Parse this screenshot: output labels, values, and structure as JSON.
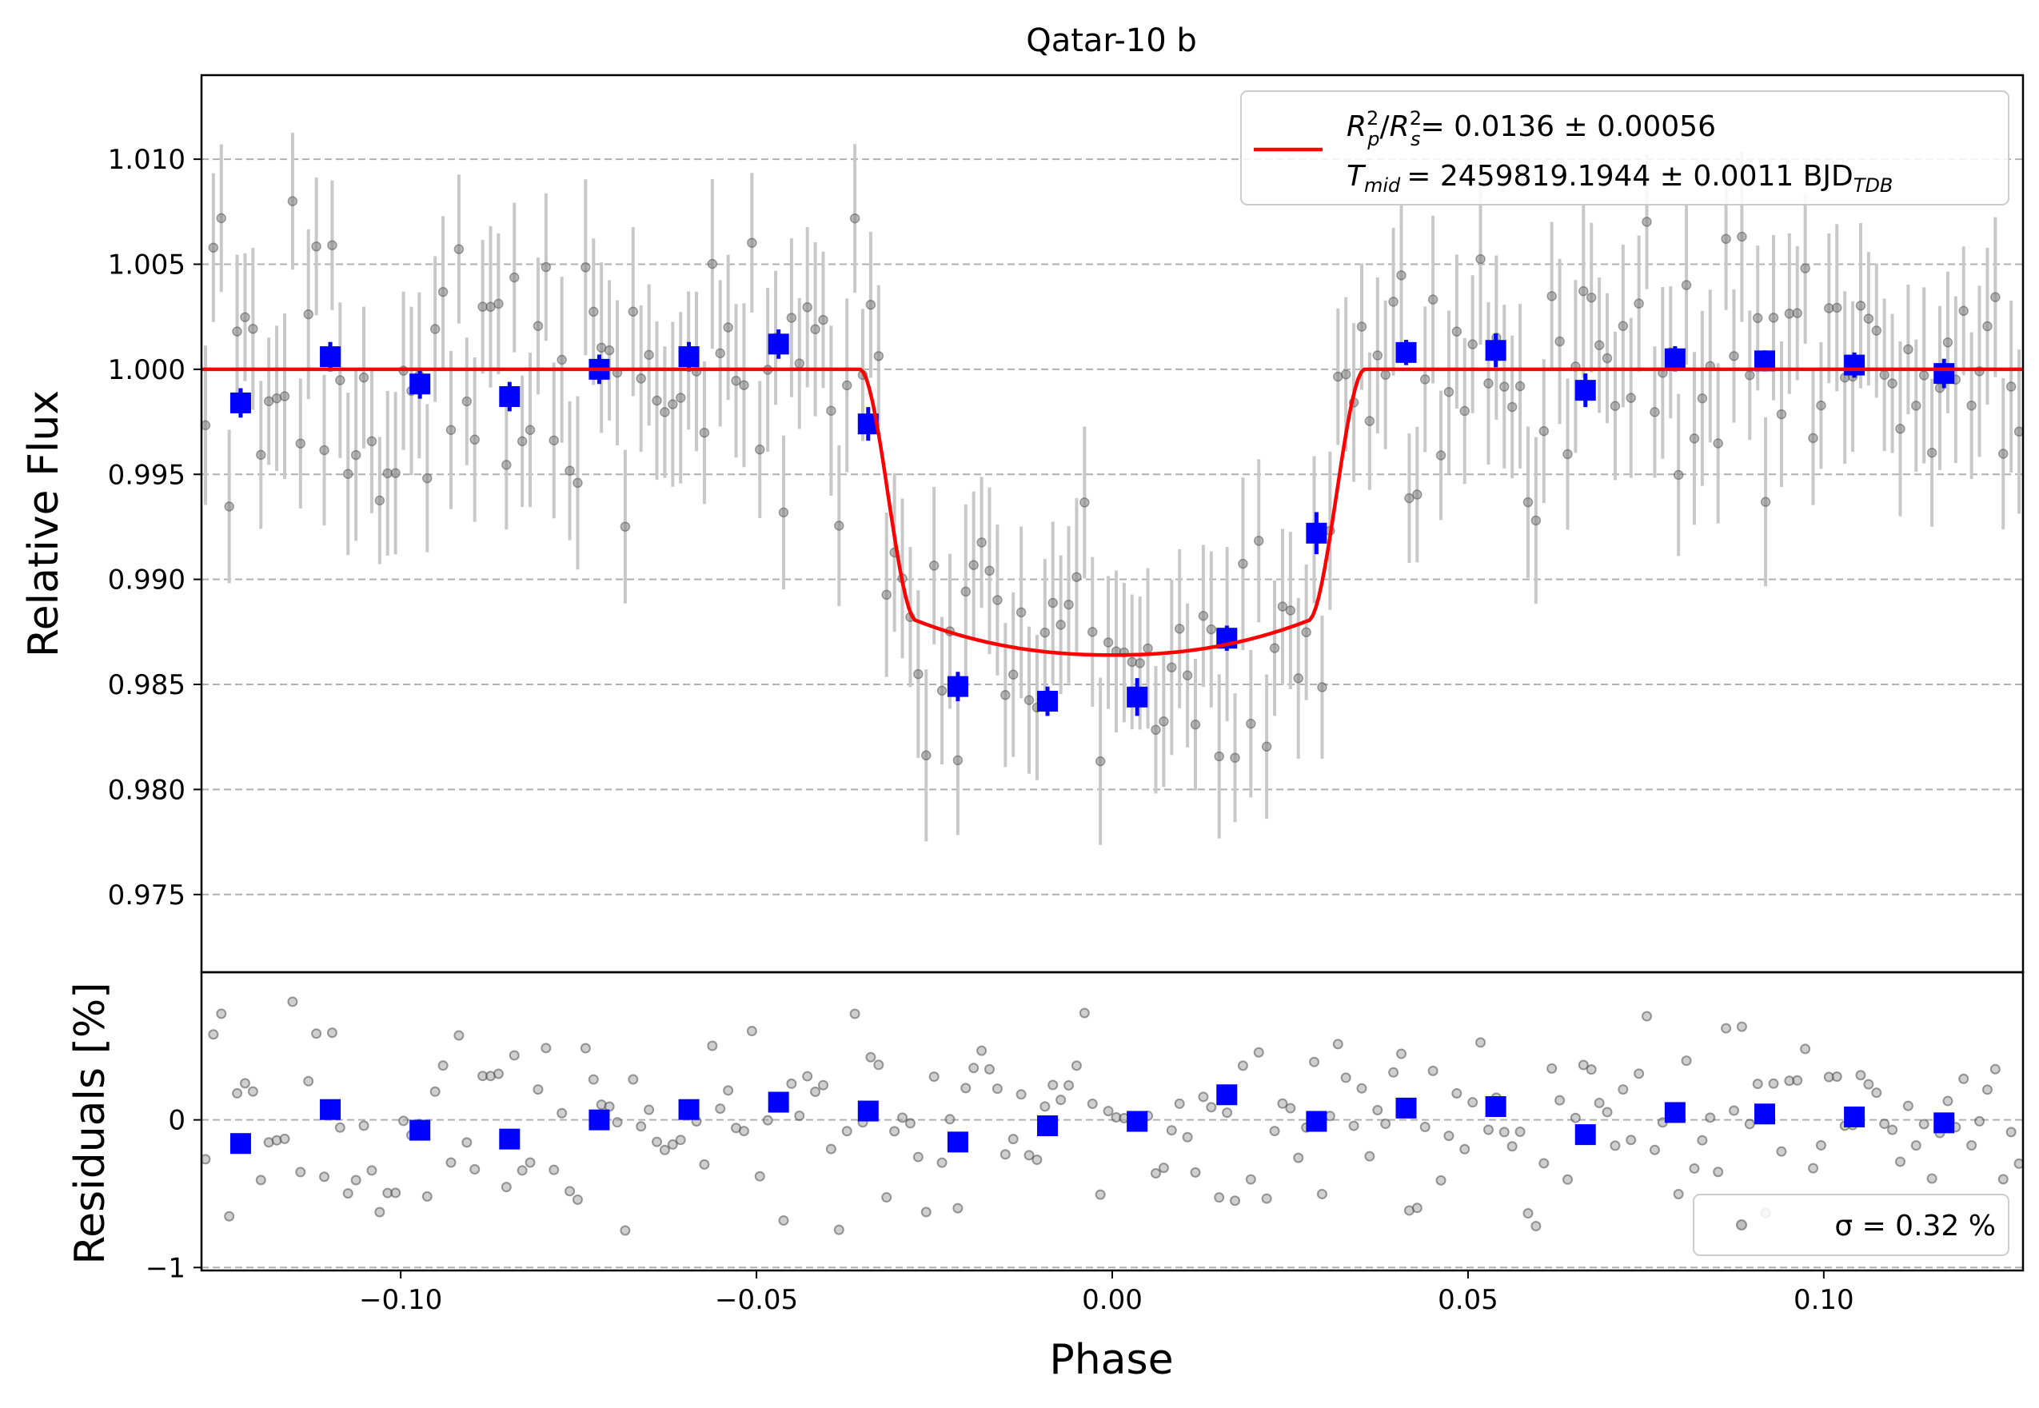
{
  "chart_data": [
    {
      "type": "scatter",
      "panel": "top",
      "title": "Qatar-10 b",
      "xlabel": "",
      "ylabel": "Relative Flux",
      "xlim": [
        -0.128,
        0.128
      ],
      "ylim": [
        0.9713,
        1.014
      ],
      "yticks": [
        0.975,
        0.98,
        0.985,
        0.99,
        0.995,
        1.0,
        1.005,
        1.01
      ],
      "ytick_labels": [
        "0.975",
        "0.980",
        "0.985",
        "0.990",
        "0.995",
        "1.000",
        "1.005",
        "1.010"
      ],
      "grid": "horizontal dashed",
      "legend": {
        "placement": "top-right",
        "line1": {
          "math": "R_p^2/R_s^2",
          "value": "= 0.0136 ± 0.00056"
        },
        "line2": {
          "math": "T_mid",
          "value": "= 2459819.1944 ± 0.0011 BJD",
          "sub": "TDB"
        }
      },
      "model": {
        "color": "#ff0000",
        "depth": 0.0136,
        "t14_half": 0.0355,
        "t23_half": 0.0275,
        "baseline": 1.0
      },
      "binned": {
        "color": "#0000ff",
        "x": [
          -0.1225,
          -0.1099,
          -0.0973,
          -0.0847,
          -0.0721,
          -0.0595,
          -0.0469,
          -0.0343,
          -0.0217,
          -0.0091,
          0.0035,
          0.0161,
          0.0287,
          0.0413,
          0.0539,
          0.0665,
          0.0791,
          0.0917,
          0.1043,
          0.1169
        ],
        "y": [
          0.9984,
          1.0006,
          0.9993,
          0.9987,
          1.0,
          1.0006,
          1.0012,
          0.9974,
          0.9849,
          0.9842,
          0.9844,
          0.9872,
          0.9922,
          1.0008,
          1.0009,
          0.999,
          1.0005,
          1.0004,
          1.0002,
          0.9998
        ],
        "err": [
          0.0007,
          0.0007,
          0.0007,
          0.0007,
          0.0007,
          0.0007,
          0.0007,
          0.0008,
          0.0007,
          0.0007,
          0.0009,
          0.0006,
          0.001,
          0.0006,
          0.0008,
          0.0008,
          0.0006,
          0.0005,
          0.0006,
          0.0007
        ]
      },
      "raw_points": {
        "color": "#808080",
        "count": 230,
        "scatter_sigma": 0.0032
      }
    },
    {
      "type": "scatter",
      "panel": "bottom",
      "xlabel": "Phase",
      "ylabel": "Residuals [%]",
      "xlim": [
        -0.128,
        0.128
      ],
      "ylim": [
        -1.02,
        1.0
      ],
      "yticks": [
        -1,
        0
      ],
      "ytick_labels": [
        "−1",
        "0"
      ],
      "xticks": [
        -0.1,
        -0.05,
        0.0,
        0.05,
        0.1
      ],
      "xtick_labels": [
        "−0.10",
        "−0.05",
        "0.00",
        "0.05",
        "0.10"
      ],
      "legend": {
        "placement": "bottom-right",
        "text": "σ = 0.32 %"
      },
      "binned": {
        "color": "#0000ff",
        "x": [
          -0.1225,
          -0.1099,
          -0.0973,
          -0.0847,
          -0.0721,
          -0.0595,
          -0.0469,
          -0.0343,
          -0.0217,
          -0.0091,
          0.0035,
          0.0161,
          0.0287,
          0.0413,
          0.0539,
          0.0665,
          0.0791,
          0.0917,
          0.1043,
          0.1169
        ],
        "y": [
          -0.16,
          0.07,
          -0.07,
          -0.13,
          0.0,
          0.07,
          0.12,
          0.06,
          -0.15,
          -0.04,
          -0.01,
          0.17,
          -0.01,
          0.08,
          0.09,
          -0.1,
          0.05,
          0.04,
          0.02,
          -0.02
        ]
      }
    }
  ]
}
